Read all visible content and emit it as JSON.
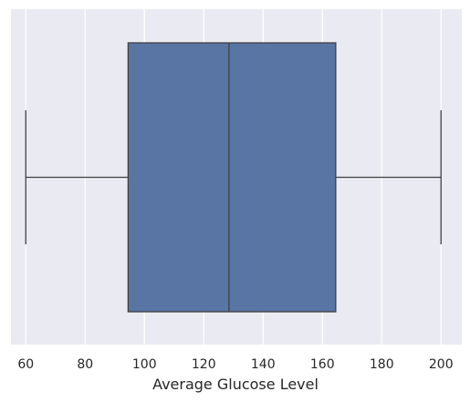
{
  "chart_data": {
    "type": "box",
    "orientation": "horizontal",
    "xlabel": "Average Glucose Level",
    "ylabel": "",
    "xlim": [
      55,
      207
    ],
    "xticks": [
      60,
      80,
      100,
      120,
      140,
      160,
      180,
      200
    ],
    "grid": true,
    "box": {
      "whisker_low": 60,
      "q1": 94.5,
      "median": 128.5,
      "q3": 164.5,
      "whisker_high": 200
    },
    "colors": {
      "background": "#eaeaf2",
      "grid": "#ffffff",
      "box_fill": "#5875a4",
      "line": "#404040"
    }
  }
}
